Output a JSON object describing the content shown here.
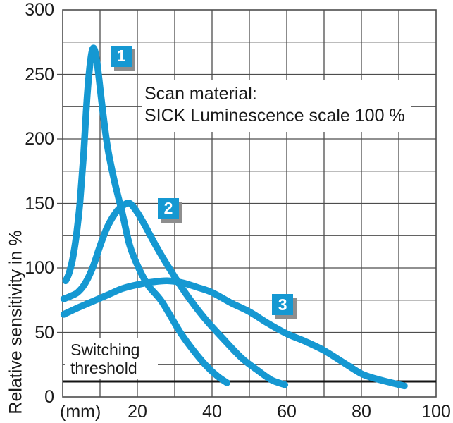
{
  "colors": {
    "curve_blue": "#1598d2",
    "badge_blue": "#1598d2",
    "badge_shadow": "#8e8e8e",
    "grid": "#4d4d4d",
    "threshold_line": "#141414",
    "text": "#1a1a1a",
    "background": "#ffffff"
  },
  "chart_data": {
    "type": "line",
    "title": "",
    "ylabel": "Relative sensitivity in %",
    "x_unit": "(mm)",
    "xlim": [
      0,
      100
    ],
    "ylim": [
      0,
      300
    ],
    "x_ticks": [
      20,
      40,
      60,
      80,
      100
    ],
    "y_ticks": [
      0,
      50,
      100,
      150,
      200,
      250,
      300
    ],
    "x_grid_step": 10,
    "y_grid_step": 25,
    "grid": true,
    "legend_position": "inline-badges",
    "annotation": {
      "line1": "Scan material:",
      "line2": "SICK Luminescence scale 100 %"
    },
    "threshold": {
      "label": "Switching threshold",
      "value": 12
    },
    "series": [
      {
        "name": "1",
        "badge": {
          "mm": 15.7,
          "pct": 264
        },
        "points": [
          [
            0.8,
            90
          ],
          [
            1.6,
            95
          ],
          [
            2.6,
            106
          ],
          [
            3.6,
            124
          ],
          [
            4.6,
            150
          ],
          [
            5.6,
            188
          ],
          [
            6.6,
            235
          ],
          [
            7.6,
            264
          ],
          [
            8.4,
            270
          ],
          [
            9.3,
            257
          ],
          [
            10.5,
            227
          ],
          [
            12,
            194
          ],
          [
            13.8,
            168
          ],
          [
            16,
            142
          ],
          [
            18,
            117
          ],
          [
            20.5,
            99
          ],
          [
            23,
            86
          ],
          [
            26.5,
            74
          ],
          [
            31.5,
            50
          ],
          [
            35,
            36
          ],
          [
            38.5,
            24
          ],
          [
            41.5,
            16
          ],
          [
            44,
            11
          ]
        ]
      },
      {
        "name": "2",
        "badge": {
          "mm": 28.3,
          "pct": 146
        },
        "points": [
          [
            0.3,
            76
          ],
          [
            2,
            78
          ],
          [
            4,
            81
          ],
          [
            6,
            88
          ],
          [
            8,
            100
          ],
          [
            10,
            117
          ],
          [
            12,
            132
          ],
          [
            14.5,
            144
          ],
          [
            16.5,
            149
          ],
          [
            18,
            150
          ],
          [
            20,
            143
          ],
          [
            22,
            133
          ],
          [
            25,
            117
          ],
          [
            28.5,
            100
          ],
          [
            33,
            80
          ],
          [
            38,
            61
          ],
          [
            43,
            45
          ],
          [
            48,
            30
          ],
          [
            52.5,
            20
          ],
          [
            56,
            13
          ],
          [
            59.5,
            9.5
          ]
        ]
      },
      {
        "name": "3",
        "badge": {
          "mm": 58.9,
          "pct": 71.5
        },
        "points": [
          [
            0.3,
            64
          ],
          [
            4,
            69
          ],
          [
            8,
            74
          ],
          [
            12,
            79
          ],
          [
            16,
            84
          ],
          [
            20,
            87
          ],
          [
            24,
            89
          ],
          [
            28,
            90
          ],
          [
            32,
            88.5
          ],
          [
            36,
            85
          ],
          [
            40,
            81
          ],
          [
            45,
            73
          ],
          [
            50,
            66
          ],
          [
            55,
            57
          ],
          [
            60,
            49
          ],
          [
            65,
            43
          ],
          [
            70,
            36
          ],
          [
            75,
            27
          ],
          [
            80,
            18
          ],
          [
            84,
            14
          ],
          [
            88,
            11
          ],
          [
            91.5,
            8.5
          ]
        ]
      }
    ]
  }
}
